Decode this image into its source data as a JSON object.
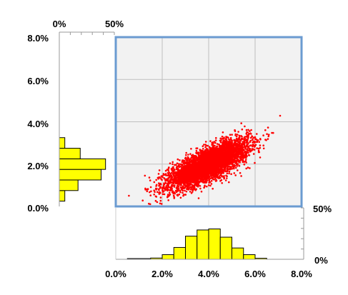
{
  "chart_data": {
    "type": "scatter",
    "title": "",
    "xlabel": "",
    "ylabel": "",
    "x_ticks": [
      "0.0%",
      "2.0%",
      "4.0%",
      "6.0%",
      "8.0%"
    ],
    "y_ticks": [
      "0.0%",
      "2.0%",
      "4.0%",
      "6.0%",
      "8.0%"
    ],
    "xlim": [
      0,
      8
    ],
    "ylim": [
      0,
      8
    ],
    "grid": true,
    "colors": {
      "points": "#ff0000",
      "plot_border": "#6b9bd1",
      "plot_background": "#f2f2f2",
      "histogram_fill": "#ffff00",
      "histogram_edge": "#000000"
    },
    "scatter_cloud": {
      "n_points_approx": 5000,
      "x_mean": 4.0,
      "x_sd": 0.85,
      "y_mean": 2.0,
      "y_sd": 0.55,
      "correlation": 0.75
    },
    "top_histogram": {
      "orientation": "vertical",
      "axis_labels": [
        "50%",
        "0%"
      ],
      "axis_range": [
        0,
        50
      ],
      "bin_edges": [
        0.5,
        1.0,
        1.5,
        2.0,
        2.5,
        3.0,
        3.5,
        4.0,
        4.5,
        5.0,
        5.5,
        6.0,
        6.5
      ],
      "values": [
        0.2,
        0.5,
        1.2,
        4.5,
        11.5,
        22.5,
        28.5,
        29.5,
        21.5,
        11.0,
        4.5,
        1.0
      ]
    },
    "side_histogram": {
      "orientation": "horizontal",
      "axis_labels": [
        "0%",
        "50%"
      ],
      "axis_range": [
        0,
        50
      ],
      "bin_edges": [
        0.25,
        0.75,
        1.25,
        1.75,
        2.25,
        2.75,
        3.25
      ],
      "values": [
        5,
        17,
        38,
        42,
        19,
        5
      ]
    }
  }
}
